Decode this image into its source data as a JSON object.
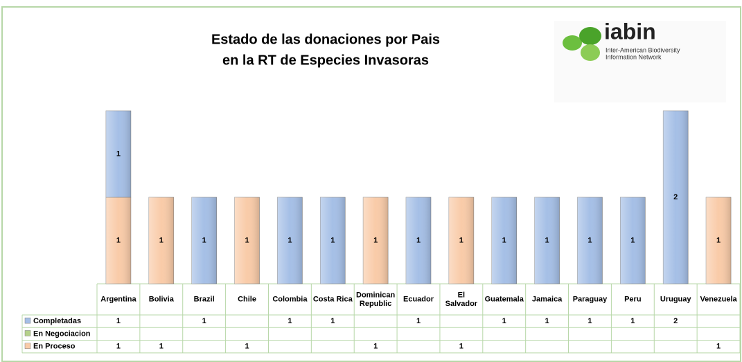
{
  "chart_data": {
    "type": "stacked_bar",
    "title": [
      "Estado de las donaciones por Pais",
      "en la RT de Especies Invasoras"
    ],
    "logo": {
      "name": "iabin",
      "text": [
        "Inter-American Biodiversity",
        "Information Network"
      ]
    },
    "categories": [
      "Argentina",
      "Bolivia",
      "Brazil",
      "Chile",
      "Colombia",
      "Costa Rica",
      "Dominican Republic",
      "Ecuador",
      "El Salvador",
      "Guatemala",
      "Jamaica",
      "Paraguay",
      "Peru",
      "Uruguay",
      "Venezuela"
    ],
    "series": [
      {
        "name": "Completadas",
        "color": "#a5bfe6",
        "values": [
          1,
          null,
          1,
          null,
          1,
          1,
          null,
          1,
          null,
          1,
          1,
          1,
          1,
          2,
          null
        ]
      },
      {
        "name": "En Negociacion",
        "color": "#b5d18a",
        "values": [
          null,
          null,
          null,
          null,
          null,
          null,
          null,
          null,
          null,
          null,
          null,
          null,
          null,
          null,
          null
        ]
      },
      {
        "name": "En Proceso",
        "color": "#f9cba8",
        "values": [
          1,
          1,
          null,
          1,
          null,
          null,
          1,
          null,
          1,
          null,
          null,
          null,
          null,
          null,
          1
        ]
      }
    ],
    "stack_order": [
      2,
      1,
      0
    ]
  }
}
